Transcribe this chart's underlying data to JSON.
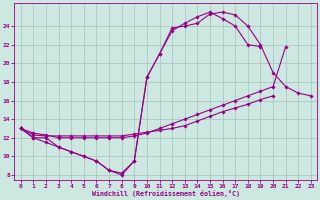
{
  "xlabel": "Windchill (Refroidissement éolien,°C)",
  "bg_color": "#cce8e0",
  "grid_color": "#aac8c0",
  "line_color": "#990088",
  "xlim": [
    -0.5,
    23.5
  ],
  "ylim": [
    7.5,
    26.5
  ],
  "xticks": [
    0,
    1,
    2,
    3,
    4,
    5,
    6,
    7,
    8,
    9,
    10,
    11,
    12,
    13,
    14,
    15,
    16,
    17,
    18,
    19,
    20,
    21,
    22,
    23
  ],
  "yticks": [
    8,
    10,
    12,
    14,
    16,
    18,
    20,
    22,
    24
  ],
  "lines": [
    {
      "x": [
        0,
        1,
        2,
        3,
        4,
        5,
        6,
        7,
        8,
        9,
        10,
        11,
        12,
        13,
        14,
        15,
        16,
        17,
        18,
        19,
        20,
        21,
        22,
        23
      ],
      "y": [
        13,
        12,
        12,
        11,
        10.5,
        10,
        9.5,
        8.5,
        8.2,
        9.5,
        18.5,
        21,
        23.8,
        24.0,
        24.3,
        25.3,
        25.5,
        25.2,
        24.0,
        22.0,
        19.0,
        17.5,
        16.8,
        16.5
      ]
    },
    {
      "x": [
        0,
        1,
        2,
        3,
        4,
        5,
        6,
        7,
        8,
        9,
        10,
        11,
        12,
        13,
        14,
        15,
        16,
        17,
        18,
        19,
        20,
        21
      ],
      "y": [
        13,
        12,
        11.5,
        11,
        10.5,
        10,
        9.5,
        8.5,
        8.0,
        9.5,
        18.5,
        21,
        23.5,
        24.3,
        25.0,
        25.5,
        24.8,
        24.0,
        22.0,
        21.8,
        null,
        null
      ]
    },
    {
      "x": [
        0,
        1,
        2,
        3,
        4,
        5,
        6,
        7,
        8,
        9,
        10,
        11,
        12,
        13,
        14,
        15,
        16,
        17,
        18,
        19,
        20,
        21,
        22,
        23
      ],
      "y": [
        13,
        12.3,
        12.2,
        12.2,
        12.2,
        12.2,
        12.2,
        12.2,
        12.2,
        12.4,
        12.6,
        12.8,
        13.0,
        13.3,
        13.8,
        14.3,
        14.8,
        15.2,
        15.6,
        16.1,
        16.5,
        null,
        null,
        null
      ]
    },
    {
      "x": [
        0,
        1,
        2,
        3,
        4,
        5,
        6,
        7,
        8,
        9,
        10,
        11,
        12,
        13,
        14,
        15,
        16,
        17,
        18,
        19,
        20,
        21,
        22,
        23
      ],
      "y": [
        13,
        12.5,
        12.3,
        12.0,
        12.0,
        12.0,
        12.0,
        12.0,
        12.0,
        12.2,
        12.5,
        13.0,
        13.5,
        14.0,
        14.5,
        15.0,
        15.5,
        16.0,
        16.5,
        17.0,
        17.5,
        21.8,
        null,
        null
      ]
    }
  ]
}
